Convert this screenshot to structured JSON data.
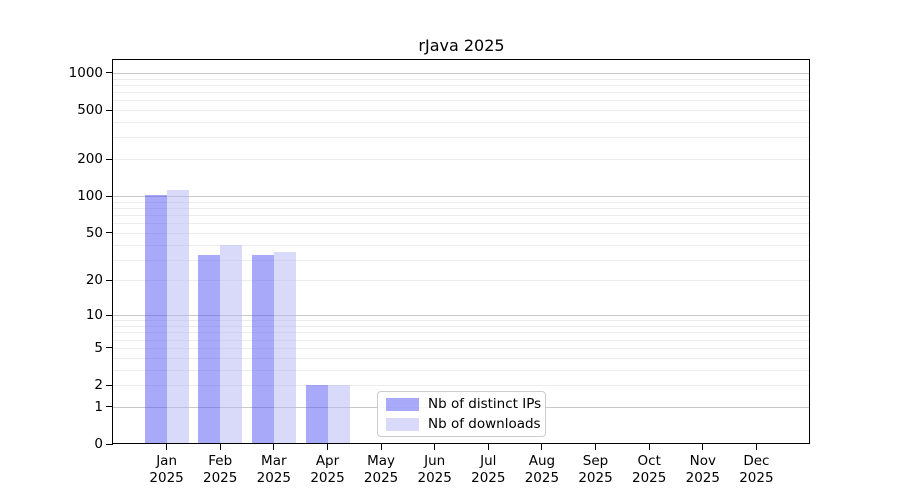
{
  "chart_data": {
    "type": "bar",
    "title": "rJava 2025",
    "categories": [
      "Jan",
      "Feb",
      "Mar",
      "Apr",
      "May",
      "Jun",
      "Jul",
      "Aug",
      "Sep",
      "Oct",
      "Nov",
      "Dec"
    ],
    "category_year": "2025",
    "series": [
      {
        "name": "Nb of distinct IPs",
        "color": "rgba(83,83,245,0.5)",
        "values": [
          103,
          33,
          33,
          2,
          0,
          0,
          0,
          0,
          0,
          0,
          0,
          0
        ]
      },
      {
        "name": "Nb of downloads",
        "color": "rgba(179,179,243,0.5)",
        "values": [
          112,
          40,
          35,
          2,
          0,
          0,
          0,
          0,
          0,
          0,
          0,
          0
        ]
      }
    ],
    "y_ticks": [
      0,
      1,
      2,
      5,
      10,
      20,
      50,
      100,
      200,
      500,
      1000
    ],
    "y_scale": "log1p",
    "ylim": [
      0,
      1270
    ],
    "xlabel": "",
    "ylabel": "",
    "legend_position": "inside-bottom-center",
    "grid": {
      "major_at": [
        1,
        10,
        100,
        1000
      ],
      "minor_decades": [
        1,
        10,
        100
      ],
      "major_color": "#c9c9c9",
      "minor_color": "#ececec"
    },
    "axis_color": "#000000",
    "background_color": "#ffffff"
  }
}
